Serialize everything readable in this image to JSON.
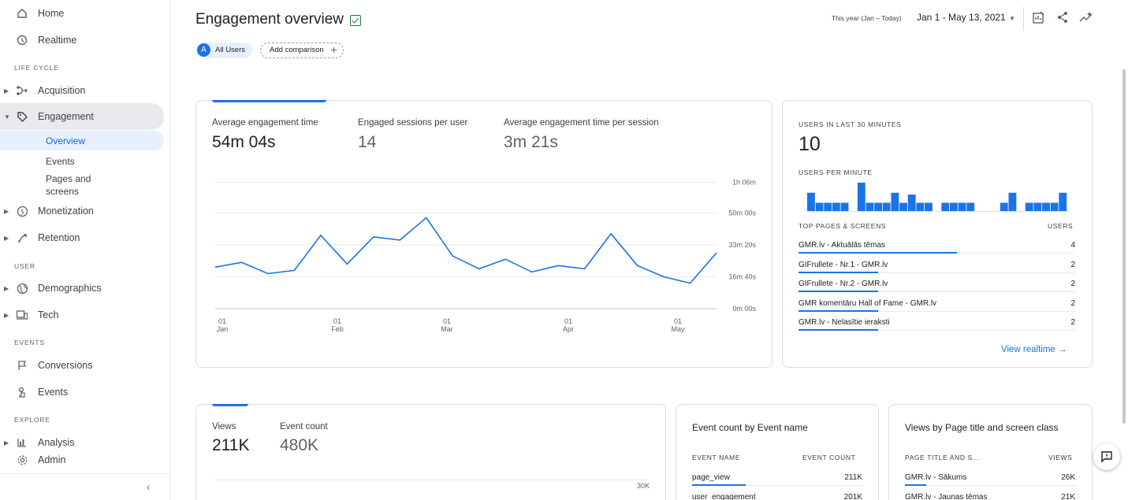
{
  "sidebar": {
    "home": "Home",
    "realtime": "Realtime",
    "section_lifecycle": "LIFE CYCLE",
    "acquisition": "Acquisition",
    "engagement": "Engagement",
    "overview": "Overview",
    "events_sub": "Events",
    "pages_line1": "Pages and",
    "pages_line2": "screens",
    "monetization": "Monetization",
    "retention": "Retention",
    "section_user": "USER",
    "demographics": "Demographics",
    "tech": "Tech",
    "section_events": "EVENTS",
    "conversions": "Conversions",
    "events": "Events",
    "section_explore": "EXPLORE",
    "analysis": "Analysis",
    "admin": "Admin",
    "collapse": "‹"
  },
  "header": {
    "title": "Engagement overview",
    "chip_avatar": "A",
    "chip_all_users": "All Users",
    "add_comparison": "Add comparison",
    "date_hint": "This year (Jan – Today)",
    "date_range": "Jan 1 - May 13, 2021"
  },
  "engagement_card": {
    "metric1_label": "Average engagement time",
    "metric1_value": "54m 04s",
    "metric2_label": "Engaged sessions per user",
    "metric2_value": "14",
    "metric3_label": "Average engagement time per session",
    "metric3_value": "3m 21s",
    "y_ticks": [
      "1h 06m",
      "50m 00s",
      "33m 20s",
      "16m 40s",
      "0m 00s"
    ],
    "x_ticks": [
      {
        "day": "01",
        "month": "Jan"
      },
      {
        "day": "01",
        "month": "Feb"
      },
      {
        "day": "01",
        "month": "Mar"
      },
      {
        "day": "01",
        "month": "Apr"
      },
      {
        "day": "01",
        "month": "May"
      }
    ]
  },
  "chart_data": {
    "type": "line",
    "x": [
      "Jan 1",
      "Jan 8",
      "Jan 15",
      "Jan 22",
      "Jan 29",
      "Feb 5",
      "Feb 12",
      "Feb 19",
      "Feb 26",
      "Mar 5",
      "Mar 12",
      "Mar 19",
      "Mar 26",
      "Apr 2",
      "Apr 9",
      "Apr 16",
      "Apr 23",
      "Apr 30",
      "May 7",
      "May 13"
    ],
    "series": [
      {
        "values": [
          1.3,
          1.45,
          1.1,
          1.2,
          2.3,
          1.4,
          2.25,
          2.15,
          2.85,
          1.65,
          1.25,
          1.55,
          1.15,
          1.35,
          1.25,
          2.35,
          1.35,
          1.0,
          0.8,
          1.75
        ]
      }
    ],
    "ylabel": "",
    "xlabel": "",
    "ylim": [
      0,
      3.95
    ],
    "y_unit": "thousand seconds"
  },
  "realtime_card": {
    "users_30_label": "USERS IN LAST 30 MINUTES",
    "users_30_value": "10",
    "per_minute_label": "USERS PER MINUTE",
    "per_minute_bars": [
      1.0,
      0.45,
      0.45,
      0.45,
      0.45,
      0.0,
      1.55,
      0.45,
      0.45,
      0.45,
      1.0,
      0.45,
      0.9,
      0.45,
      0.45,
      0.0,
      0.45,
      0.45,
      0.45,
      0.45,
      0.0,
      0.0,
      0.0,
      0.45,
      1.0,
      0.0,
      0.45,
      0.45,
      0.45,
      0.45,
      1.0
    ],
    "top_pages_label": "TOP PAGES & SCREENS",
    "users_label": "USERS",
    "rows": [
      {
        "name": "GMR.lv - Aktuālās tēmas",
        "value": "4",
        "share": 1.0
      },
      {
        "name": "GIFrullete - Nr.1 - GMR.lv",
        "value": "2",
        "share": 0.5
      },
      {
        "name": "GIFrullete - Nr.2 - GMR.lv",
        "value": "2",
        "share": 0.5
      },
      {
        "name": "GMR komentāru Hall of Fame - GMR.lv",
        "value": "2",
        "share": 0.5
      },
      {
        "name": "GMR.lv - Nelasītie ieraksti",
        "value": "2",
        "share": 0.5
      }
    ],
    "view_realtime": "View realtime →"
  },
  "views_card": {
    "metric1_label": "Views",
    "metric1_value": "211K",
    "metric2_label": "Event count",
    "metric2_value": "480K",
    "y_tick": "30K"
  },
  "event_card": {
    "title": "Event count by Event name",
    "col1": "EVENT NAME",
    "col2": "EVENT COUNT",
    "rows": [
      {
        "name": "page_view",
        "value": "211K",
        "share": 0.72
      },
      {
        "name": "user_engagement",
        "value": "201K",
        "share": 0.68
      }
    ]
  },
  "pages_card": {
    "title": "Views by Page title and screen class",
    "col1": "PAGE TITLE AND S...",
    "col2": "VIEWS",
    "rows": [
      {
        "name": "GMR.lv - Sākums",
        "value": "26K",
        "share": 0.3
      },
      {
        "name": "GMR.lv - Jaunas tēmas",
        "value": "21K",
        "share": 0.24
      }
    ]
  }
}
